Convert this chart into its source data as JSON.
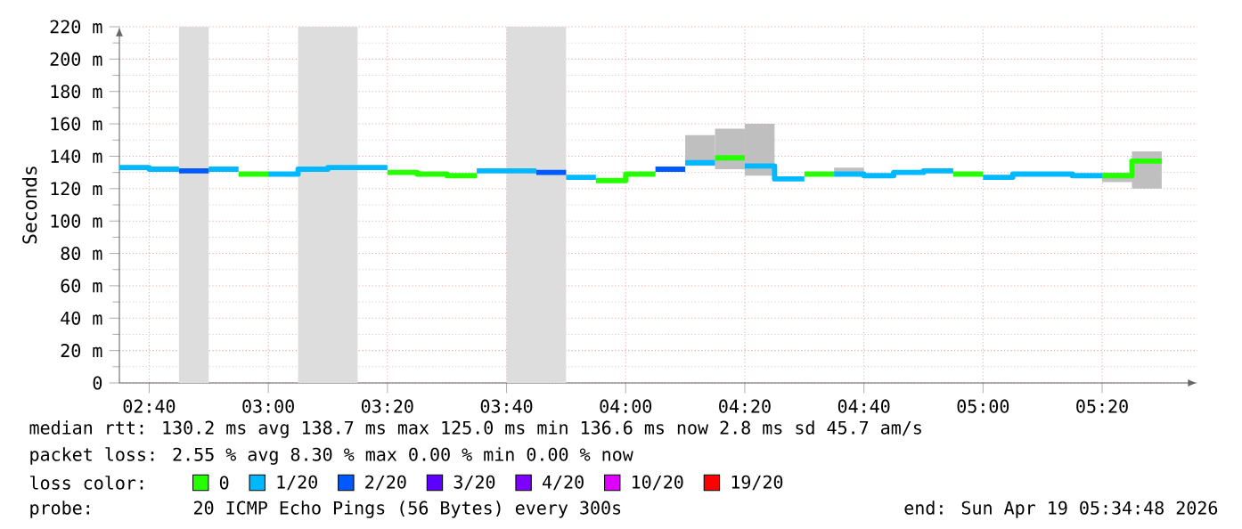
{
  "chart_data": {
    "type": "step",
    "ylabel": "Seconds",
    "legend_title": "loss color:",
    "legend": "bottom",
    "grid": true,
    "xlim": [
      2.5833,
      5.6
    ],
    "xticks": [
      {
        "value": 2.6667,
        "label": "02:40"
      },
      {
        "value": 3,
        "label": "03:00"
      },
      {
        "value": 3.3333,
        "label": "03:20"
      },
      {
        "value": 3.6667,
        "label": "03:40"
      },
      {
        "value": 4,
        "label": "04:00"
      },
      {
        "value": 4.3333,
        "label": "04:20"
      },
      {
        "value": 4.6667,
        "label": "04:40"
      },
      {
        "value": 5,
        "label": "05:00"
      },
      {
        "value": 5.3333,
        "label": "05:20"
      }
    ],
    "ylim": [
      0,
      220
    ],
    "yticks": [
      0,
      {
        "value": 20,
        "label": "20 m"
      },
      {
        "value": 40,
        "label": "40 m"
      },
      {
        "value": 60,
        "label": "60 m"
      },
      {
        "value": 80,
        "label": "80 m"
      },
      {
        "value": 100,
        "label": "100 m"
      },
      {
        "value": 120,
        "label": "120 m"
      },
      {
        "value": 140,
        "label": "140 m"
      },
      {
        "value": 160,
        "label": "160 m"
      },
      {
        "value": 180,
        "label": "180 m"
      },
      {
        "value": 200,
        "label": "200 m"
      },
      {
        "value": 220,
        "label": "220 m"
      }
    ],
    "series": [
      {
        "name": "0",
        "color": "#26ff00",
        "x": [
          2.9167,
          3
        ],
        "values": [
          129,
          129
        ]
      },
      {
        "color": "#26ff00",
        "x": [
          3.3333,
          3.4167,
          3.5,
          3.5833
        ],
        "values": [
          130,
          129,
          128,
          128
        ]
      },
      {
        "color": "#26ff00",
        "x": [
          3.9167,
          4,
          4.0833
        ],
        "values": [
          125,
          129,
          129
        ]
      },
      {
        "color": "#26ff00",
        "x": [
          4.25,
          4.3333
        ],
        "values": [
          139,
          139
        ],
        "lower": [
          132,
          132
        ],
        "upper": [
          157,
          157
        ]
      },
      {
        "color": "#26ff00",
        "x": [
          4.5,
          4.5833
        ],
        "values": [
          129,
          129
        ]
      },
      {
        "color": "#26ff00",
        "x": [
          4.9167,
          5
        ],
        "values": [
          129,
          129
        ]
      },
      {
        "color": "#26ff00",
        "x": [
          5.3333,
          5.4167,
          5.5
        ],
        "values": [
          128,
          137,
          137
        ],
        "lower": [
          124,
          120,
          120
        ],
        "upper": [
          130,
          143,
          143
        ]
      },
      {
        "name": "1/20",
        "color": "#00b8ff",
        "x": [
          2.5833,
          2.6667,
          2.75
        ],
        "values": [
          133,
          132,
          132
        ]
      },
      {
        "color": "#00b8ff",
        "x": [
          2.8333,
          2.9167
        ],
        "values": [
          132,
          132
        ]
      },
      {
        "color": "#00b8ff",
        "x": [
          3,
          3.0833,
          3.1667,
          3.25,
          3.3333
        ],
        "values": [
          129,
          132,
          133,
          133,
          133
        ]
      },
      {
        "color": "#00b8ff",
        "x": [
          3.5833,
          3.6667,
          3.75
        ],
        "values": [
          131,
          131,
          131
        ]
      },
      {
        "color": "#00b8ff",
        "x": [
          3.8333,
          3.9167
        ],
        "values": [
          127,
          127
        ]
      },
      {
        "color": "#00b8ff",
        "x": [
          4.1667,
          4.25
        ],
        "values": [
          136,
          136
        ],
        "lower": [
          134,
          134
        ],
        "upper": [
          153,
          153
        ]
      },
      {
        "color": "#00b8ff",
        "x": [
          4.3333,
          4.4167,
          4.5
        ],
        "values": [
          134,
          126,
          126
        ],
        "lower": [
          128,
          126,
          126
        ],
        "upper": [
          160,
          126,
          126
        ]
      },
      {
        "color": "#00b8ff",
        "x": [
          4.5833,
          4.6667,
          4.75,
          4.8333,
          4.9167
        ],
        "values": [
          129,
          128,
          130,
          131,
          131
        ],
        "lower": [
          128,
          128,
          130,
          131,
          131
        ],
        "upper": [
          133,
          128,
          130,
          131,
          131
        ]
      },
      {
        "color": "#00b8ff",
        "x": [
          5,
          5.0833,
          5.1667,
          5.25,
          5.3333
        ],
        "values": [
          127,
          129,
          129,
          128,
          128
        ]
      },
      {
        "name": "2/20",
        "color": "#0059ff",
        "x": [
          2.75,
          2.8333
        ],
        "values": [
          131,
          131
        ]
      },
      {
        "color": "#0059ff",
        "x": [
          3.75,
          3.8333
        ],
        "values": [
          130,
          130
        ]
      },
      {
        "color": "#0059ff",
        "x": [
          4.0833,
          4.1667
        ],
        "values": [
          132,
          132
        ]
      },
      {
        "name": "3/20",
        "color": "#5e00ff"
      },
      {
        "name": "4/20",
        "color": "#7e00ff"
      },
      {
        "name": "10/20",
        "color": "#dd00ff"
      },
      {
        "name": "19/20",
        "color": "#ff0000"
      }
    ],
    "bands": [
      {
        "axis": "x",
        "from": 2.75,
        "to": 2.8333,
        "color": "#dddddd"
      },
      {
        "axis": "x",
        "from": 3.0833,
        "to": 3.25,
        "color": "#dddddd"
      },
      {
        "axis": "x",
        "from": 3.6667,
        "to": 3.8333,
        "color": "#dddddd"
      }
    ],
    "annotations": [
      "median rtt:  130.2 ms avg  138.7 ms max  125.0 ms min  136.6 ms now  2.8 ms sd  45.7   am/s",
      "packet loss: 2.55 % avg  8.30 % max  0.00 % min  0.00 % now",
      "probe:",
      "20 ICMP Echo Pings (56 Bytes) every 300s",
      "end: Sun Apr 19 05:34:48 2026"
    ]
  }
}
